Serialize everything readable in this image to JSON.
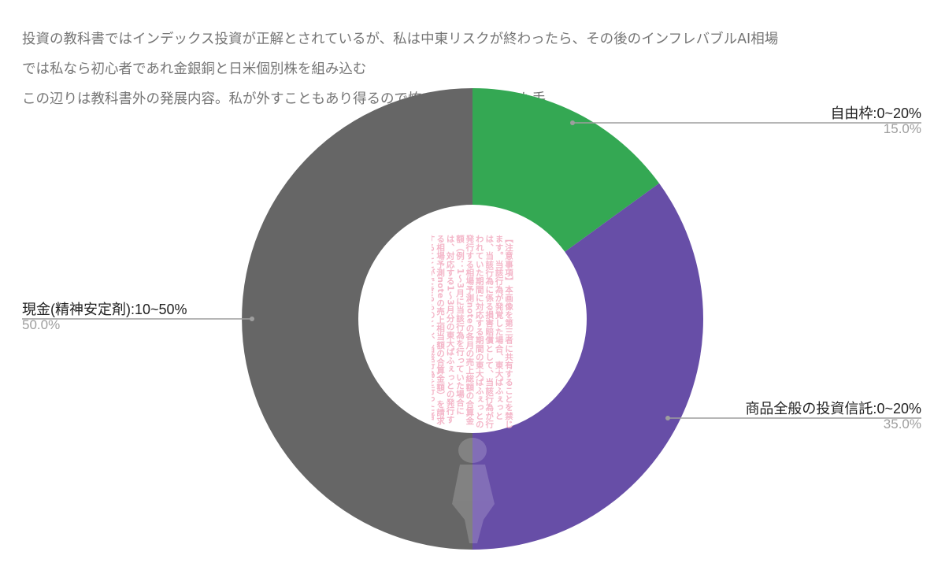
{
  "title_lines": [
    "投資の教科書ではインデックス投資が正解とされているが、私は中東リスクが終わったら、その後のインフレバブルAI相場",
    "では私なら初心者であれ金銀銅と日米個別株を組み込む",
    "この辺りは教科書外の発展内容。私が外すこともあり得るので怖い人は避けるのも手"
  ],
  "watermark_text": "【注意事項】本画像を第三者に共有することを禁じます。当該行為が発覚した場合、東大ぱふぇっとは、当該行為に係る損害賠償として、当該行為が行われていた期間に対応する期間の東大ぱふぇっとの発行する相場予測noteの各月の売上総額の合算金額（例：1〜3月に当該行為を行っていた場合には、対応する1〜3月分の東大ぱふぇっとの発行する相場予測noteの売上相当額の合算金額）を請求することができるものとし、当該行為を行った者は、当該合算金額を東大ぱふぇっとに対して支払うことに同意するものとします。",
  "chart_data": {
    "type": "pie",
    "subtype": "donut",
    "title": "投資の教科書ではインデックス投資が正解とされているが、私は中東リスクが終わったら、その後のインフレバブルAI相場では私なら初心者であれ金銀銅と日米個別株を組み込む この辺りは教科書外の発展内容。私が外すこともあり得るので怖い人は避けるのも手",
    "start_angle_deg": 0,
    "direction": "clockwise",
    "slices": [
      {
        "label": "自由枠:0~20%",
        "value": 15.0,
        "display": "15.0%",
        "color": "#34a853"
      },
      {
        "label": "商品全般の投資信託:0~20%",
        "value": 35.0,
        "display": "35.0%",
        "color": "#674ea7"
      },
      {
        "label": "現金(精神安定剤):10~50%",
        "value": 50.0,
        "display": "50.0%",
        "color": "#666666"
      }
    ],
    "legend": "none (callout labels)",
    "labels": {
      "free": {
        "name": "自由枠:0~20%",
        "pct": "15.0%"
      },
      "funds": {
        "name": "商品全般の投資信託:0~20%",
        "pct": "35.0%"
      },
      "cash": {
        "name": "現金(精神安定剤):10~50%",
        "pct": "50.0%"
      }
    }
  }
}
